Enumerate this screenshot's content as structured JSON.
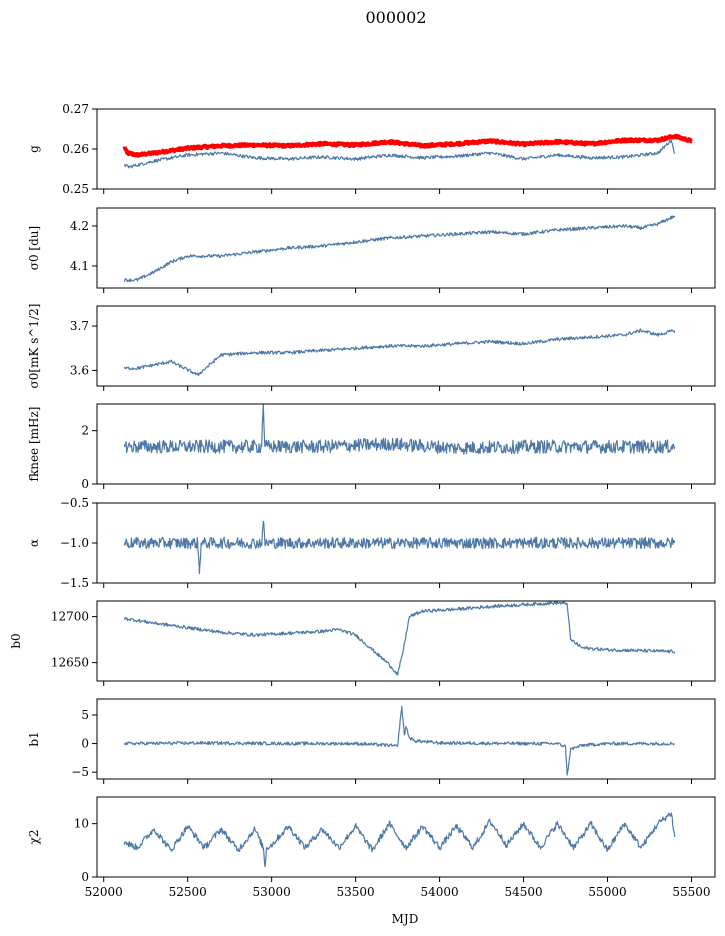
{
  "figure": {
    "title": "000002",
    "xlabel": "MJD",
    "line_color": "#4e79a7",
    "highlight_color": "#ff0000"
  },
  "chart_data": [
    {
      "type": "line",
      "ylabel": "g",
      "xlim": [
        51960,
        55640
      ],
      "ylim": [
        0.25,
        0.27
      ],
      "yticks": [
        0.25,
        0.26,
        0.27
      ],
      "ytick_labels": [
        "0.25",
        "0.26",
        "0.27"
      ],
      "series": [
        {
          "color": "#ff0000",
          "style": "thick",
          "x": [
            52125,
            52140,
            52200,
            52300,
            52500,
            52700,
            52900,
            53100,
            53300,
            53500,
            53700,
            53900,
            54100,
            54300,
            54500,
            54700,
            54900,
            55100,
            55300,
            55400,
            55500
          ],
          "y": [
            0.2605,
            0.259,
            0.2585,
            0.259,
            0.2602,
            0.2608,
            0.261,
            0.2608,
            0.2613,
            0.261,
            0.2618,
            0.2608,
            0.2613,
            0.262,
            0.2612,
            0.2618,
            0.2613,
            0.2622,
            0.2622,
            0.2632,
            0.262
          ]
        },
        {
          "color": "#4e79a7",
          "x": [
            52125,
            52150,
            52300,
            52500,
            52700,
            52900,
            53100,
            53300,
            53500,
            53700,
            53900,
            54100,
            54300,
            54500,
            54700,
            54900,
            55100,
            55300,
            55380,
            55400
          ],
          "y": [
            0.256,
            0.2555,
            0.257,
            0.2585,
            0.259,
            0.2578,
            0.2575,
            0.258,
            0.2575,
            0.2585,
            0.2578,
            0.2582,
            0.259,
            0.2575,
            0.2585,
            0.2578,
            0.258,
            0.259,
            0.2622,
            0.2588
          ]
        }
      ]
    },
    {
      "type": "line",
      "ylabel": "σ0 [du]",
      "xlim": [
        51960,
        55640
      ],
      "ylim": [
        4.045,
        4.245
      ],
      "yticks": [
        4.1,
        4.2
      ],
      "ytick_labels": [
        "4.1",
        "4.2"
      ],
      "series": [
        {
          "color": "#4e79a7",
          "x": [
            52125,
            52200,
            52300,
            52400,
            52500,
            52700,
            52900,
            53100,
            53300,
            53500,
            53700,
            53900,
            54100,
            54300,
            54500,
            54700,
            54900,
            55100,
            55200,
            55300,
            55400
          ],
          "y": [
            4.065,
            4.065,
            4.085,
            4.11,
            4.125,
            4.125,
            4.135,
            4.145,
            4.15,
            4.16,
            4.17,
            4.175,
            4.18,
            4.185,
            4.18,
            4.19,
            4.195,
            4.2,
            4.195,
            4.205,
            4.225
          ]
        }
      ]
    },
    {
      "type": "line",
      "ylabel": "σ0[mK s^1/2]",
      "xlim": [
        51960,
        55640
      ],
      "ylim": [
        3.565,
        3.745
      ],
      "yticks": [
        3.6,
        3.7
      ],
      "ytick_labels": [
        "3.6",
        "3.7"
      ],
      "series": [
        {
          "color": "#4e79a7",
          "x": [
            52125,
            52200,
            52400,
            52560,
            52700,
            52900,
            53100,
            53300,
            53500,
            53700,
            53900,
            54100,
            54300,
            54500,
            54700,
            54900,
            55100,
            55200,
            55300,
            55400
          ],
          "y": [
            3.605,
            3.605,
            3.62,
            3.59,
            3.635,
            3.64,
            3.64,
            3.645,
            3.65,
            3.655,
            3.655,
            3.66,
            3.665,
            3.66,
            3.67,
            3.675,
            3.68,
            3.69,
            3.68,
            3.69
          ]
        }
      ]
    },
    {
      "type": "line",
      "ylabel": "fknee [mHz]",
      "xlim": [
        51960,
        55640
      ],
      "ylim": [
        0,
        3.0
      ],
      "yticks": [
        0,
        2
      ],
      "ytick_labels": [
        "0",
        "2"
      ],
      "series": [
        {
          "color": "#4e79a7",
          "noise": 0.25,
          "x": [
            52125,
            52500,
            52940,
            52950,
            52960,
            53300,
            53700,
            54100,
            54500,
            54900,
            55300,
            55400
          ],
          "y": [
            1.4,
            1.4,
            1.4,
            3.0,
            1.4,
            1.4,
            1.5,
            1.35,
            1.4,
            1.4,
            1.4,
            1.4
          ]
        }
      ]
    },
    {
      "type": "line",
      "ylabel": "α",
      "xlim": [
        51960,
        55640
      ],
      "ylim": [
        -1.5,
        -0.5
      ],
      "yticks": [
        -1.5,
        -1.0,
        -0.5
      ],
      "ytick_labels": [
        "−1.5",
        "−1.0",
        "−0.5"
      ],
      "series": [
        {
          "color": "#4e79a7",
          "noise": 0.07,
          "x": [
            52125,
            52500,
            52560,
            52570,
            52580,
            52940,
            52950,
            52960,
            53300,
            53700,
            54100,
            54500,
            54900,
            55300,
            55400
          ],
          "y": [
            -1.0,
            -1.0,
            -1.0,
            -1.38,
            -1.0,
            -1.0,
            -0.73,
            -1.0,
            -1.0,
            -1.0,
            -1.0,
            -1.0,
            -1.0,
            -1.0,
            -1.0
          ]
        }
      ]
    },
    {
      "type": "line",
      "ylabel": "b0",
      "xlim": [
        51960,
        55640
      ],
      "ylim": [
        12630,
        12717
      ],
      "yticks": [
        12650,
        12700
      ],
      "ytick_labels": [
        "12650",
        "12700"
      ],
      "series": [
        {
          "color": "#4e79a7",
          "x": [
            52125,
            52300,
            52500,
            52700,
            52900,
            53100,
            53300,
            53400,
            53500,
            53600,
            53700,
            53750,
            53780,
            53820,
            53900,
            54100,
            54300,
            54500,
            54700,
            54760,
            54780,
            54850,
            55000,
            55200,
            55400
          ],
          "y": [
            12698,
            12693,
            12688,
            12683,
            12680,
            12682,
            12684,
            12686,
            12680,
            12664,
            12648,
            12637,
            12660,
            12700,
            12706,
            12708,
            12711,
            12713,
            12715,
            12714,
            12675,
            12666,
            12664,
            12663,
            12662
          ]
        }
      ]
    },
    {
      "type": "line",
      "ylabel": "b1",
      "xlim": [
        51960,
        55640
      ],
      "ylim": [
        -6.2,
        7.8
      ],
      "yticks": [
        -5,
        0,
        5
      ],
      "ytick_labels": [
        "−5",
        "0",
        "5"
      ],
      "series": [
        {
          "color": "#4e79a7",
          "x": [
            52125,
            52600,
            53100,
            53500,
            53700,
            53750,
            53760,
            53775,
            53790,
            53800,
            53820,
            53850,
            54000,
            54500,
            54700,
            54750,
            54760,
            54780,
            54850,
            55000,
            55400
          ],
          "y": [
            0.0,
            0.1,
            0.0,
            0.0,
            -0.3,
            -0.5,
            2.5,
            6.5,
            1.5,
            3.0,
            1.0,
            0.5,
            0.1,
            0.0,
            0.0,
            -0.5,
            -5.5,
            -1.0,
            -0.3,
            0.0,
            0.0
          ]
        }
      ]
    },
    {
      "type": "line",
      "ylabel": "χ2",
      "xlim": [
        51960,
        55640
      ],
      "ylim": [
        0,
        15
      ],
      "yticks": [
        0,
        10
      ],
      "ytick_labels": [
        "0",
        "10"
      ],
      "series": [
        {
          "color": "#4e79a7",
          "noise": 0.6,
          "x": [
            52125,
            52200,
            52300,
            52400,
            52500,
            52600,
            52700,
            52800,
            52900,
            52950,
            52960,
            52970,
            53000,
            53100,
            53200,
            53300,
            53400,
            53500,
            53600,
            53700,
            53800,
            53900,
            54000,
            54100,
            54200,
            54300,
            54400,
            54500,
            54600,
            54700,
            54800,
            54900,
            55000,
            55100,
            55200,
            55300,
            55380,
            55400
          ],
          "y": [
            6.5,
            5.5,
            9.0,
            5.0,
            9.5,
            5.5,
            9.0,
            5.0,
            9.0,
            5.5,
            2.0,
            5.5,
            6.0,
            9.5,
            5.5,
            9.0,
            5.5,
            9.5,
            5.0,
            10.0,
            5.5,
            9.5,
            5.5,
            9.5,
            5.5,
            10.5,
            6.0,
            10.0,
            5.5,
            10.0,
            5.5,
            10.0,
            5.0,
            10.0,
            5.5,
            10.0,
            12.0,
            7.5
          ]
        }
      ]
    }
  ],
  "xaxis": {
    "ticks": [
      52000,
      52500,
      53000,
      53500,
      54000,
      54500,
      55000,
      55500
    ],
    "tick_labels": [
      "52000",
      "52500",
      "53000",
      "53500",
      "54000",
      "54500",
      "55000",
      "55500"
    ]
  }
}
